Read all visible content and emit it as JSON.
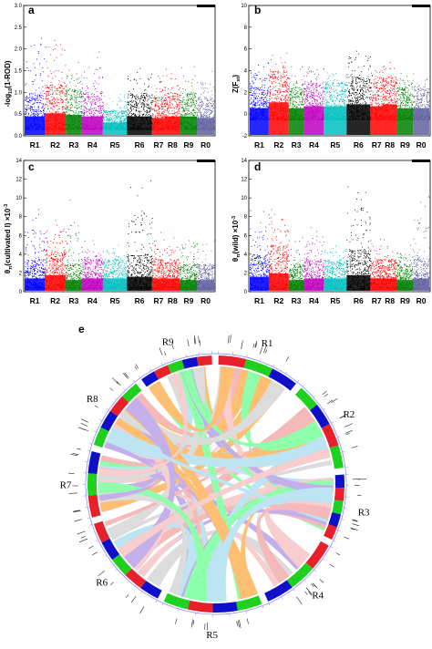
{
  "chart_data": [
    {
      "type": "scatter",
      "panel": "a",
      "ylabel": "-log10(1-ROD)",
      "ylim": [
        0,
        3.0
      ],
      "yticks": [
        "0.0",
        "0.5",
        "1.0",
        "1.5",
        "2.0",
        "2.5",
        "3.0"
      ],
      "categories": [
        "R1",
        "R2",
        "R3",
        "R4",
        "R5",
        "R6",
        "R7",
        "R8",
        "R9",
        "R0"
      ],
      "bands": [
        {
          "category": "R1",
          "base": 0.15,
          "typical_max": 1.0,
          "peak": 2.4
        },
        {
          "category": "R2",
          "base": 0.15,
          "typical_max": 1.2,
          "peak": 2.8
        },
        {
          "category": "R3",
          "base": 0.15,
          "typical_max": 1.1,
          "peak": 1.8
        },
        {
          "category": "R4",
          "base": 0.15,
          "typical_max": 1.0,
          "peak": 2.0
        },
        {
          "category": "R5",
          "base": 0.15,
          "typical_max": 0.6,
          "peak": 1.0
        },
        {
          "category": "R6",
          "base": 0.15,
          "typical_max": 1.0,
          "peak": 1.6
        },
        {
          "category": "R7",
          "base": 0.15,
          "typical_max": 0.9,
          "peak": 1.5
        },
        {
          "category": "R8",
          "base": 0.15,
          "typical_max": 1.0,
          "peak": 1.6
        },
        {
          "category": "R9",
          "base": 0.15,
          "typical_max": 1.0,
          "peak": 1.7
        },
        {
          "category": "R0",
          "base": 0.15,
          "typical_max": 0.9,
          "peak": 1.5
        }
      ]
    },
    {
      "type": "scatter",
      "panel": "b",
      "ylabel": "Z(Fst)",
      "ylim": [
        -2,
        10
      ],
      "yticks": [
        "-2",
        "0",
        "2",
        "4",
        "6",
        "8",
        "10"
      ],
      "categories": [
        "R1",
        "R2",
        "R3",
        "R4",
        "R5",
        "R6",
        "R7",
        "R8",
        "R9",
        "R0"
      ],
      "bands": [
        {
          "category": "R1",
          "base": -0.5,
          "typical_max": 2.5,
          "peak": 5.0
        },
        {
          "category": "R2",
          "base": -0.5,
          "typical_max": 4.0,
          "peak": 6.0
        },
        {
          "category": "R3",
          "base": -0.5,
          "typical_max": 2.5,
          "peak": 4.5
        },
        {
          "category": "R4",
          "base": -0.5,
          "typical_max": 3.0,
          "peak": 5.0
        },
        {
          "category": "R5",
          "base": -0.5,
          "typical_max": 3.0,
          "peak": 4.0
        },
        {
          "category": "R6",
          "base": -0.5,
          "typical_max": 3.5,
          "peak": 6.5
        },
        {
          "category": "R7",
          "base": -0.5,
          "typical_max": 3.0,
          "peak": 4.5
        },
        {
          "category": "R8",
          "base": -0.5,
          "typical_max": 3.5,
          "peak": 5.0
        },
        {
          "category": "R9",
          "base": -0.5,
          "typical_max": 2.5,
          "peak": 4.0
        },
        {
          "category": "R0",
          "base": -0.5,
          "typical_max": 2.5,
          "peak": 4.0
        }
      ]
    },
    {
      "type": "scatter",
      "panel": "c",
      "ylabel": "θπ(cultivated I) ×10-3",
      "ylim": [
        0,
        14
      ],
      "yticks": [
        "0",
        "2",
        "4",
        "6",
        "8",
        "10",
        "12",
        "14"
      ],
      "categories": [
        "R1",
        "R2",
        "R3",
        "R4",
        "R5",
        "R6",
        "R7",
        "R8",
        "R9",
        "R0"
      ],
      "bands": [
        {
          "category": "R1",
          "base": 0.3,
          "typical_max": 3.5,
          "peak": 9.0
        },
        {
          "category": "R2",
          "base": 0.3,
          "typical_max": 4.5,
          "peak": 8.0
        },
        {
          "category": "R3",
          "base": 0.3,
          "typical_max": 3.0,
          "peak": 10.0
        },
        {
          "category": "R4",
          "base": 0.3,
          "typical_max": 3.5,
          "peak": 5.5
        },
        {
          "category": "R5",
          "base": 0.3,
          "typical_max": 3.5,
          "peak": 5.0
        },
        {
          "category": "R6",
          "base": 0.3,
          "typical_max": 4.0,
          "peak": 12.0
        },
        {
          "category": "R7",
          "base": 0.3,
          "typical_max": 3.5,
          "peak": 7.0
        },
        {
          "category": "R8",
          "base": 0.3,
          "typical_max": 3.5,
          "peak": 6.0
        },
        {
          "category": "R9",
          "base": 0.3,
          "typical_max": 3.0,
          "peak": 7.0
        },
        {
          "category": "R0",
          "base": 0.3,
          "typical_max": 3.0,
          "peak": 6.0
        }
      ]
    },
    {
      "type": "scatter",
      "panel": "d",
      "ylabel": "θπ(wild) ×10-3",
      "ylim": [
        0,
        14
      ],
      "yticks": [
        "0",
        "2",
        "4",
        "6",
        "8",
        "10",
        "12",
        "14"
      ],
      "categories": [
        "R1",
        "R2",
        "R3",
        "R4",
        "R5",
        "R6",
        "R7",
        "R8",
        "R9",
        "R0"
      ],
      "bands": [
        {
          "category": "R1",
          "base": 0.3,
          "typical_max": 4.0,
          "peak": 9.0
        },
        {
          "category": "R2",
          "base": 0.3,
          "typical_max": 5.0,
          "peak": 10.0
        },
        {
          "category": "R3",
          "base": 0.3,
          "typical_max": 3.0,
          "peak": 6.0
        },
        {
          "category": "R4",
          "base": 0.3,
          "typical_max": 3.5,
          "peak": 7.0
        },
        {
          "category": "R5",
          "base": 0.3,
          "typical_max": 3.5,
          "peak": 5.0
        },
        {
          "category": "R6",
          "base": 0.3,
          "typical_max": 4.5,
          "peak": 12.0
        },
        {
          "category": "R7",
          "base": 0.3,
          "typical_max": 3.5,
          "peak": 6.0
        },
        {
          "category": "R8",
          "base": 0.3,
          "typical_max": 3.5,
          "peak": 6.0
        },
        {
          "category": "R9",
          "base": 0.3,
          "typical_max": 3.0,
          "peak": 5.0
        },
        {
          "category": "R0",
          "base": 0.3,
          "typical_max": 3.5,
          "peak": 11.0
        }
      ]
    }
  ],
  "panels": {
    "a": {
      "letter": "a",
      "ylabel_main": "-log",
      "ylabel_sub": "10",
      "ylabel_tail": "(1-ROD)"
    },
    "b": {
      "letter": "b",
      "ylabel_main": "Z(F",
      "ylabel_sub": "st",
      "ylabel_tail": ")"
    },
    "c": {
      "letter": "c",
      "ylabel_main": "θ",
      "ylabel_sub": "π",
      "ylabel_tail": "(cultivated I) ×10",
      "ylabel_sup": "-3"
    },
    "d": {
      "letter": "d",
      "ylabel_main": "θ",
      "ylabel_sub": "π",
      "ylabel_tail": "(wild) ×10",
      "ylabel_sup": "-3"
    }
  },
  "circos": {
    "letter": "e",
    "chromosomes": [
      "R1",
      "R2",
      "R3",
      "R4",
      "R5",
      "R6",
      "R7",
      "R8",
      "R9"
    ],
    "block_colors": [
      "#e8202a",
      "#1fd11f",
      "#1010c8"
    ],
    "link_colors": [
      "#f08080",
      "#33ff66",
      "#c0c0c0",
      "#ff8c00",
      "#9370db",
      "#87ceeb",
      "#f4a6a6"
    ]
  },
  "colors": {
    "R1": "#0000ff",
    "R2": "#ff0000",
    "R3": "#008000",
    "R4": "#c000c0",
    "R5": "#00bfbf",
    "R6": "#000000",
    "R7": "#ff0000",
    "R8": "#ff0000",
    "R9": "#008000",
    "R0": "#6060a0"
  }
}
